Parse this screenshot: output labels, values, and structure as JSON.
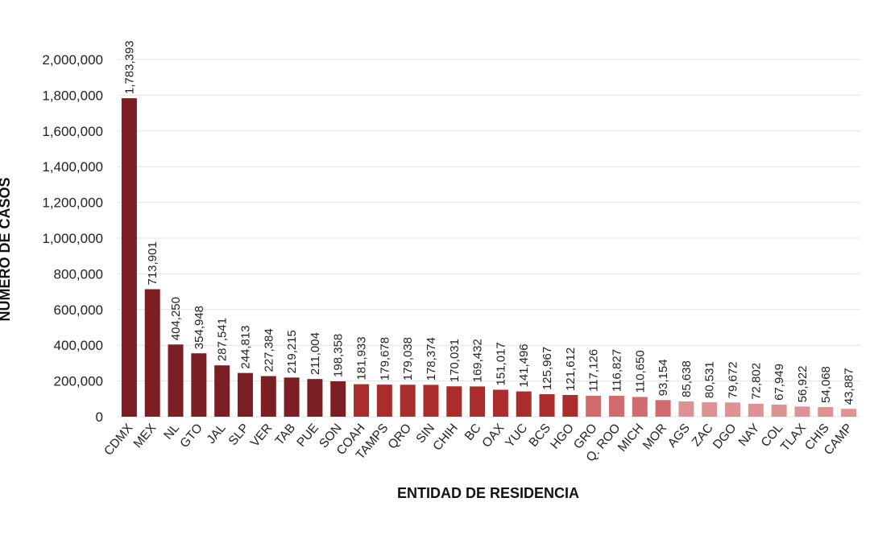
{
  "chart_data": {
    "type": "bar",
    "xlabel": "ENTIDAD DE RESIDENCIA",
    "ylabel": "NÚMERO DE CASOS",
    "ylim": [
      0,
      2000000
    ],
    "yticks": [
      0,
      200000,
      400000,
      600000,
      800000,
      1000000,
      1200000,
      1400000,
      1600000,
      1800000,
      2000000
    ],
    "ytick_labels": [
      "0",
      "200,000",
      "400,000",
      "600,000",
      "800,000",
      "1,000,000",
      "1,200,000",
      "1,400,000",
      "1,600,000",
      "1,800,000",
      "2,000,000"
    ],
    "grid": true,
    "categories": [
      "CDMX",
      "MEX",
      "NL",
      "GTO",
      "JAL",
      "SLP",
      "VER",
      "TAB",
      "PUE",
      "SON",
      "COAH",
      "TAMPS",
      "QRO",
      "SIN",
      "CHIH",
      "BC",
      "OAX",
      "YUC",
      "BCS",
      "HGO",
      "GRO",
      "Q. ROO",
      "MICH",
      "MOR",
      "AGS",
      "ZAC",
      "DGO",
      "NAY",
      "COL",
      "TLAX",
      "CHIS",
      "CAMP"
    ],
    "values": [
      1783393,
      713901,
      404250,
      354948,
      287541,
      244813,
      227384,
      219215,
      211004,
      198358,
      181933,
      179678,
      179038,
      178374,
      170031,
      169432,
      151017,
      141496,
      125967,
      121612,
      117126,
      116827,
      110650,
      93154,
      85638,
      80531,
      79672,
      72802,
      67949,
      56922,
      54068,
      43887
    ],
    "value_labels": [
      "1,783,393",
      "713,901",
      "404,250",
      "354,948",
      "287,541",
      "244,813",
      "227,384",
      "219,215",
      "211,004",
      "198,358",
      "181,933",
      "179,678",
      "179,038",
      "178,374",
      "170,031",
      "169,432",
      "151,017",
      "141,496",
      "125,967",
      "121,612",
      "117,126",
      "116,827",
      "110,650",
      "93,154",
      "85,638",
      "80,531",
      "79,672",
      "72,802",
      "67,949",
      "56,922",
      "54,068",
      "43,887"
    ],
    "bar_colors": [
      "#7b1f24",
      "#7b1f24",
      "#7b1f24",
      "#7b1f24",
      "#7b1f24",
      "#7b1f24",
      "#7b1f24",
      "#7b1f24",
      "#7b1f24",
      "#7b1f24",
      "#ab2d2b",
      "#ab2d2b",
      "#ab2d2b",
      "#ab2d2b",
      "#ab2d2b",
      "#ab2d2b",
      "#ab2d2b",
      "#ab2d2b",
      "#ab2d2b",
      "#ab2d2b",
      "#d16b6e",
      "#d16b6e",
      "#d16b6e",
      "#d16b6e",
      "#de9294",
      "#de9294",
      "#de9294",
      "#de9294",
      "#de9294",
      "#de9294",
      "#de9294",
      "#de9294"
    ]
  }
}
